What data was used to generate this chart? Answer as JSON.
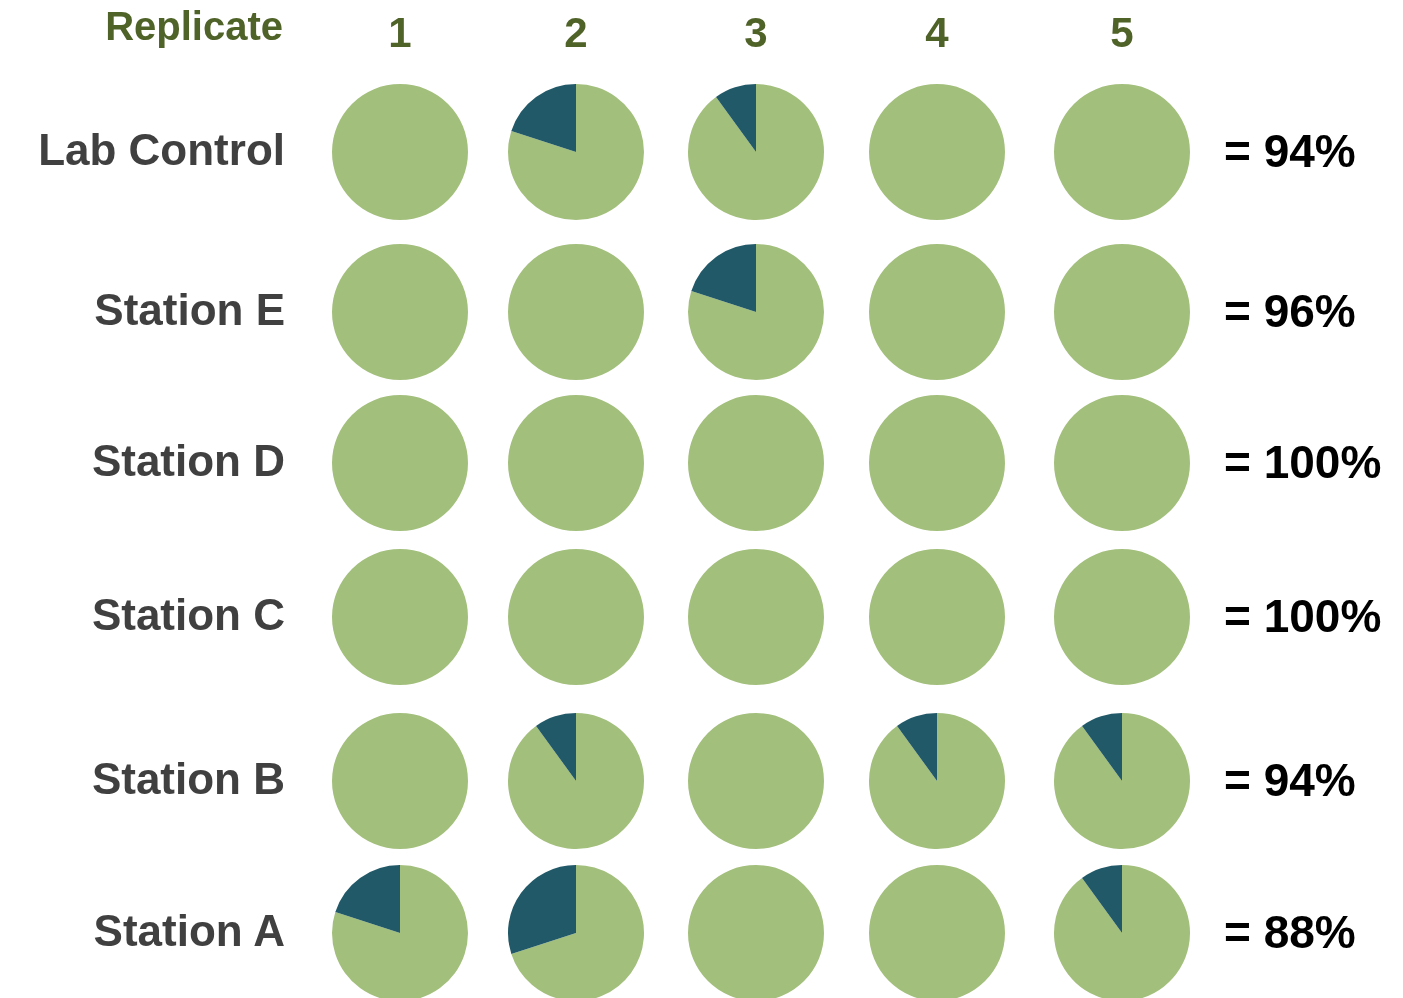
{
  "chart_data": [
    {
      "type": "other",
      "title": "Replicate",
      "annotations": [
        "Lab Control",
        "= 94%",
        "Station E",
        "= 96%",
        "Station D",
        "= 100%",
        "Station C",
        "= 100%",
        "Station B",
        "= 94%",
        "Station A",
        "= 88%"
      ]
    },
    {
      "type": "pie",
      "title": "1",
      "values": [
        100
      ],
      "colors": [
        "#a3bf7c"
      ]
    },
    {
      "type": "pie",
      "title": "2",
      "values": [
        80,
        20
      ],
      "colors": [
        "#a3bf7c",
        "#215968"
      ]
    },
    {
      "type": "pie",
      "title": "3",
      "values": [
        90,
        10
      ],
      "colors": [
        "#a3bf7c",
        "#215968"
      ]
    },
    {
      "type": "pie",
      "title": "4",
      "values": [
        100
      ],
      "colors": [
        "#a3bf7c"
      ]
    },
    {
      "type": "pie",
      "title": "5",
      "values": [
        100
      ],
      "colors": [
        "#a3bf7c"
      ]
    },
    {
      "type": "pie",
      "values": [
        100
      ],
      "colors": [
        "#a3bf7c"
      ]
    },
    {
      "type": "pie",
      "values": [
        100
      ],
      "colors": [
        "#a3bf7c"
      ]
    },
    {
      "type": "pie",
      "values": [
        80,
        20
      ],
      "colors": [
        "#a3bf7c",
        "#215968"
      ]
    },
    {
      "type": "pie",
      "values": [
        100
      ],
      "colors": [
        "#a3bf7c"
      ]
    },
    {
      "type": "pie",
      "values": [
        100
      ],
      "colors": [
        "#a3bf7c"
      ]
    },
    {
      "type": "pie",
      "values": [
        100
      ],
      "colors": [
        "#a3bf7c"
      ]
    },
    {
      "type": "pie",
      "values": [
        100
      ],
      "colors": [
        "#a3bf7c"
      ]
    },
    {
      "type": "pie",
      "values": [
        100
      ],
      "colors": [
        "#a3bf7c"
      ]
    },
    {
      "type": "pie",
      "values": [
        100
      ],
      "colors": [
        "#a3bf7c"
      ]
    },
    {
      "type": "pie",
      "values": [
        100
      ],
      "colors": [
        "#a3bf7c"
      ]
    },
    {
      "type": "pie",
      "values": [
        100
      ],
      "colors": [
        "#a3bf7c"
      ]
    },
    {
      "type": "pie",
      "values": [
        100
      ],
      "colors": [
        "#a3bf7c"
      ]
    },
    {
      "type": "pie",
      "values": [
        100
      ],
      "colors": [
        "#a3bf7c"
      ]
    },
    {
      "type": "pie",
      "values": [
        100
      ],
      "colors": [
        "#a3bf7c"
      ]
    },
    {
      "type": "pie",
      "values": [
        100
      ],
      "colors": [
        "#a3bf7c"
      ]
    },
    {
      "type": "pie",
      "values": [
        100
      ],
      "colors": [
        "#a3bf7c"
      ]
    },
    {
      "type": "pie",
      "values": [
        90,
        10
      ],
      "colors": [
        "#a3bf7c",
        "#215968"
      ]
    },
    {
      "type": "pie",
      "values": [
        100
      ],
      "colors": [
        "#a3bf7c"
      ]
    },
    {
      "type": "pie",
      "values": [
        90,
        10
      ],
      "colors": [
        "#a3bf7c",
        "#215968"
      ]
    },
    {
      "type": "pie",
      "values": [
        90,
        10
      ],
      "colors": [
        "#a3bf7c",
        "#215968"
      ]
    },
    {
      "type": "pie",
      "values": [
        80,
        20
      ],
      "colors": [
        "#a3bf7c",
        "#215968"
      ]
    },
    {
      "type": "pie",
      "values": [
        70,
        30
      ],
      "colors": [
        "#a3bf7c",
        "#215968"
      ]
    },
    {
      "type": "pie",
      "values": [
        100
      ],
      "colors": [
        "#a3bf7c"
      ]
    },
    {
      "type": "pie",
      "values": [
        100
      ],
      "colors": [
        "#a3bf7c"
      ]
    },
    {
      "type": "pie",
      "values": [
        90,
        10
      ],
      "colors": [
        "#a3bf7c",
        "#215968"
      ]
    }
  ]
}
